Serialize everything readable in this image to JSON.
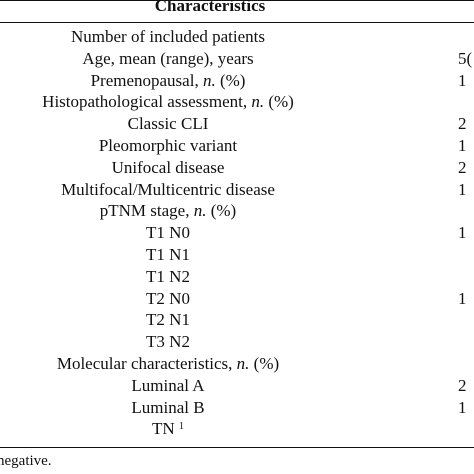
{
  "table": {
    "header": "Characteristics",
    "rows": [
      {
        "label": "Number of included patients",
        "value": ""
      },
      {
        "label": "Age, mean (range), years",
        "value": "5("
      },
      {
        "label": "Premenopausal, n. (%)",
        "value": "1"
      },
      {
        "label": "Histopathological assessment, n. (%)",
        "value": ""
      },
      {
        "label": "Classic CLI",
        "value": "2"
      },
      {
        "label": "Pleomorphic variant",
        "value": "1"
      },
      {
        "label": "Unifocal disease",
        "value": "2"
      },
      {
        "label": "Multifocal/Multicentric disease",
        "value": "1"
      },
      {
        "label": "pTNM stage, n. (%)",
        "value": ""
      },
      {
        "label": "T1 N0",
        "value": "1"
      },
      {
        "label": "T1 N1",
        "value": ""
      },
      {
        "label": "T1 N2",
        "value": ""
      },
      {
        "label": "T2 N0",
        "value": "1"
      },
      {
        "label": "T2 N1",
        "value": ""
      },
      {
        "label": "T3 N2",
        "value": ""
      },
      {
        "label": "Molecular characteristics, n. (%)",
        "value": ""
      },
      {
        "label": "Luminal A",
        "value": "2"
      },
      {
        "label": "Luminal B",
        "value": "1"
      },
      {
        "label": "TN",
        "value": "",
        "sup": "1"
      }
    ],
    "footnote": "negative."
  }
}
